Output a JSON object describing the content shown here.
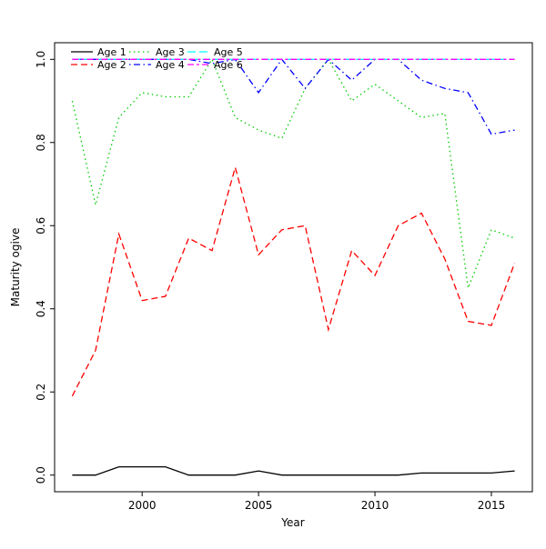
{
  "chart_data": {
    "type": "line",
    "title": "",
    "xlabel": "Year",
    "ylabel": "Maturity ogive",
    "grid": false,
    "legend_position": "top-left",
    "xlim": [
      1996.24,
      2016.76
    ],
    "ylim": [
      -0.04,
      1.04
    ],
    "xticks": [
      2000,
      2005,
      2010,
      2015
    ],
    "yticks": [
      "0.0",
      "0.2",
      "0.4",
      "0.6",
      "0.8",
      "1.0"
    ],
    "x": [
      1997,
      1998,
      1999,
      2000,
      2001,
      2002,
      2003,
      2004,
      2005,
      2006,
      2007,
      2008,
      2009,
      2010,
      2011,
      2012,
      2013,
      2014,
      2015,
      2016
    ],
    "series": [
      {
        "name": "Age 1",
        "color": "#000000",
        "linetype": "solid",
        "values": [
          0.0,
          0.0,
          0.02,
          0.02,
          0.02,
          0.0,
          0.0,
          0.0,
          0.01,
          0.0,
          0.0,
          0.0,
          0.0,
          0.0,
          0.0,
          0.005,
          0.005,
          0.005,
          0.005,
          0.01
        ]
      },
      {
        "name": "Age 2",
        "color": "#FF0000",
        "linetype": "dashed",
        "values": [
          0.19,
          0.3,
          0.58,
          0.42,
          0.43,
          0.57,
          0.54,
          0.74,
          0.53,
          0.59,
          0.6,
          0.35,
          0.54,
          0.48,
          0.6,
          0.63,
          0.52,
          0.37,
          0.36,
          0.51
        ]
      },
      {
        "name": "Age 3",
        "color": "#00CD00",
        "linetype": "dotted",
        "values": [
          0.9,
          0.65,
          0.86,
          0.92,
          0.91,
          0.91,
          1.0,
          0.86,
          0.83,
          0.81,
          0.93,
          1.0,
          0.9,
          0.94,
          0.9,
          0.86,
          0.87,
          0.45,
          0.59,
          0.57
        ]
      },
      {
        "name": "Age 4",
        "color": "#0000FF",
        "linetype": "dotdash",
        "values": [
          1.0,
          1.0,
          1.0,
          1.0,
          1.0,
          1.0,
          0.99,
          1.0,
          0.92,
          1.0,
          0.93,
          1.0,
          0.95,
          1.0,
          1.0,
          0.95,
          0.93,
          0.92,
          0.82,
          0.83
        ]
      },
      {
        "name": "Age 5",
        "color": "#00FFFF",
        "linetype": "longdash",
        "values": [
          1.0,
          1.0,
          1.0,
          1.0,
          1.0,
          1.0,
          1.0,
          1.0,
          1.0,
          1.0,
          1.0,
          1.0,
          1.0,
          1.0,
          1.0,
          1.0,
          1.0,
          1.0,
          1.0,
          1.0
        ]
      },
      {
        "name": "Age 6",
        "color": "#FF00FF",
        "linetype": "twodash",
        "values": [
          1.0,
          1.0,
          1.0,
          1.0,
          1.0,
          1.0,
          1.0,
          1.0,
          1.0,
          1.0,
          1.0,
          1.0,
          1.0,
          1.0,
          1.0,
          1.0,
          1.0,
          1.0,
          1.0,
          1.0
        ]
      }
    ],
    "legend": {
      "columns": [
        [
          "Age 1",
          "Age 2"
        ],
        [
          "Age 3",
          "Age 4"
        ],
        [
          "Age 5",
          "Age 6"
        ]
      ]
    }
  }
}
